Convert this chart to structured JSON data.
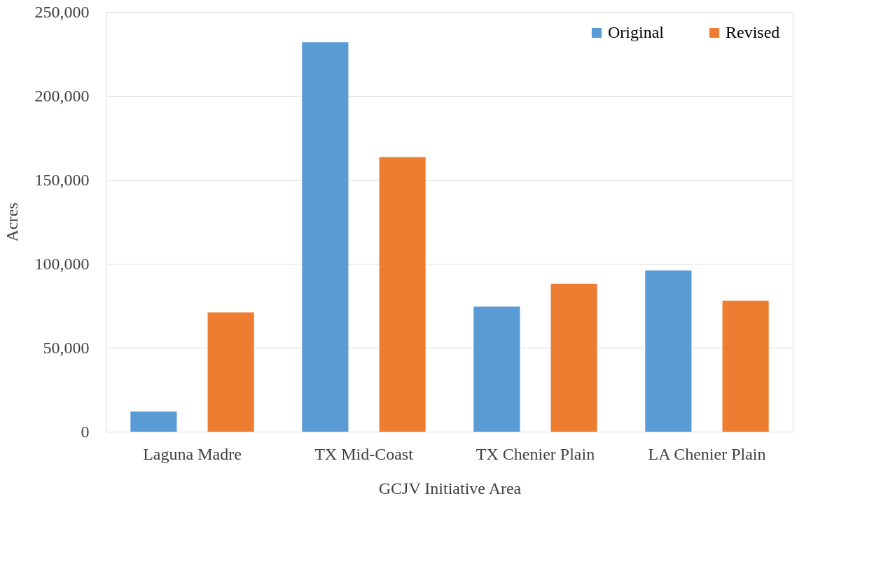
{
  "chart_data": {
    "type": "bar",
    "xlabel": "GCJV Initiative Area",
    "ylabel": "Acres",
    "categories": [
      "Laguna Madre",
      "TX Mid-Coast",
      "TX Chenier Plain",
      "LA Chenier Plain"
    ],
    "series": [
      {
        "name": "Original",
        "color": "#5b9bd5",
        "values": [
          12000,
          232000,
          74500,
          96000
        ]
      },
      {
        "name": "Revised",
        "color": "#ed7d31",
        "values": [
          71000,
          163500,
          88000,
          78000
        ]
      }
    ],
    "ylim": [
      0,
      250000
    ],
    "yticks": [
      0,
      {
        "value": 50000,
        "label": "50,000"
      },
      {
        "value": 100000,
        "label": "100,000"
      },
      {
        "value": 150000,
        "label": "150,000"
      },
      {
        "value": 200000,
        "label": "200,000"
      },
      {
        "value": 250000,
        "label": "250,000"
      }
    ],
    "grid": "y",
    "legend": "top right"
  }
}
